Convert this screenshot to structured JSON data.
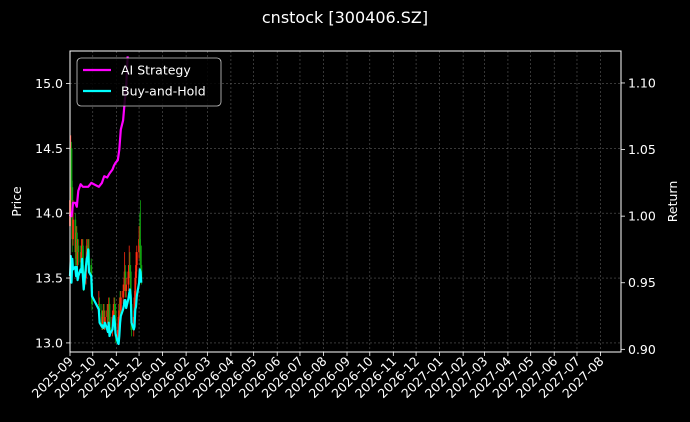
{
  "chart_data": {
    "type": "line",
    "title": "cnstock [300406.SZ]",
    "ylabel_left": "Price",
    "ylabel_right": "Return",
    "ylim_left": [
      12.93,
      15.25
    ],
    "ylim_right": [
      0.898,
      1.124
    ],
    "yticks_left": [
      "13.0",
      "13.5",
      "14.0",
      "14.5",
      "15.0"
    ],
    "yticks_right": [
      "0.90",
      "0.95",
      "1.00",
      "1.05",
      "1.10"
    ],
    "x_range": [
      "2025-09-01",
      "2027-08-28"
    ],
    "x_ticks": [
      "2025-09",
      "2025-10",
      "2025-11",
      "2025-12",
      "2026-01",
      "2026-02",
      "2026-03",
      "2026-04",
      "2026-05",
      "2026-06",
      "2026-07",
      "2026-08",
      "2026-09",
      "2026-10",
      "2026-11",
      "2026-12",
      "2027-01",
      "2027-02",
      "2027-03",
      "2027-04",
      "2027-05",
      "2027-06",
      "2027-07",
      "2027-08"
    ],
    "grid": true,
    "legend": {
      "placement": "top-left"
    },
    "colors": {
      "background": "#000000",
      "ai_strategy": "#ff00ff",
      "buy_and_hold": "#00ffff",
      "candle_up": "#ff2a10",
      "candle_down": "#10a010",
      "grid": "#5a5a5a"
    },
    "series": [
      {
        "name": "AI Strategy",
        "axis": "right",
        "x": [
          "2025-09-01",
          "2025-09-02",
          "2025-09-03",
          "2025-09-04",
          "2025-09-05",
          "2025-09-08",
          "2025-09-10",
          "2025-09-12",
          "2025-09-15",
          "2025-09-18",
          "2025-09-22",
          "2025-09-25",
          "2025-09-29",
          "2025-10-09",
          "2025-10-13",
          "2025-10-16",
          "2025-10-20",
          "2025-10-23",
          "2025-10-27",
          "2025-10-29",
          "2025-10-31",
          "2025-11-03",
          "2025-11-05",
          "2025-11-07",
          "2025-11-10",
          "2025-11-12",
          "2025-11-14",
          "2025-11-16"
        ],
        "values": [
          1.0,
          1.002,
          1.0,
          1.004,
          1.01,
          1.01,
          1.007,
          1.019,
          1.024,
          1.022,
          1.022,
          1.022,
          1.025,
          1.022,
          1.025,
          1.03,
          1.029,
          1.032,
          1.035,
          1.038,
          1.04,
          1.042,
          1.05,
          1.065,
          1.072,
          1.085,
          1.098,
          1.12
        ]
      },
      {
        "name": "Buy-and-Hold",
        "axis": "right",
        "x": [
          "2025-09-01",
          "2025-09-02",
          "2025-09-03",
          "2025-09-04",
          "2025-09-05",
          "2025-09-08",
          "2025-09-09",
          "2025-09-10",
          "2025-09-11",
          "2025-09-12",
          "2025-09-15",
          "2025-09-16",
          "2025-09-17",
          "2025-09-18",
          "2025-09-19",
          "2025-09-22",
          "2025-09-23",
          "2025-09-24",
          "2025-09-25",
          "2025-09-26",
          "2025-09-29",
          "2025-09-30",
          "2025-10-09",
          "2025-10-10",
          "2025-10-13",
          "2025-10-14",
          "2025-10-15",
          "2025-10-16",
          "2025-10-17",
          "2025-10-20",
          "2025-10-21",
          "2025-10-22",
          "2025-10-23",
          "2025-10-24",
          "2025-10-27",
          "2025-10-28",
          "2025-10-29",
          "2025-10-30",
          "2025-10-31",
          "2025-11-03",
          "2025-11-04",
          "2025-11-05",
          "2025-11-06",
          "2025-11-07",
          "2025-11-10",
          "2025-11-11",
          "2025-11-12",
          "2025-11-13",
          "2025-11-14",
          "2025-11-17",
          "2025-11-18",
          "2025-11-19",
          "2025-11-20",
          "2025-11-21",
          "2025-11-24",
          "2025-11-25",
          "2025-11-26",
          "2025-11-27",
          "2025-11-28",
          "2025-12-01",
          "2025-12-02",
          "2025-12-03",
          "2025-12-04"
        ],
        "values": [
          0.955,
          0.97,
          0.95,
          0.968,
          0.96,
          0.962,
          0.955,
          0.962,
          0.952,
          0.955,
          0.96,
          0.958,
          0.968,
          0.955,
          0.945,
          0.962,
          0.968,
          0.97,
          0.975,
          0.958,
          0.955,
          0.94,
          0.93,
          0.92,
          0.917,
          0.918,
          0.916,
          0.918,
          0.92,
          0.915,
          0.913,
          0.92,
          0.91,
          0.912,
          0.915,
          0.922,
          0.925,
          0.92,
          0.912,
          0.905,
          0.904,
          0.91,
          0.92,
          0.925,
          0.93,
          0.933,
          0.937,
          0.937,
          0.931,
          0.938,
          0.942,
          0.945,
          0.94,
          0.92,
          0.915,
          0.917,
          0.93,
          0.932,
          0.94,
          0.95,
          0.96,
          0.958,
          0.95
        ]
      }
    ],
    "candles": {
      "axis": "left",
      "x": [
        "2025-09-01",
        "2025-09-02",
        "2025-09-03",
        "2025-09-04",
        "2025-09-05",
        "2025-09-08",
        "2025-09-09",
        "2025-09-10",
        "2025-09-11",
        "2025-09-12",
        "2025-09-15",
        "2025-09-16",
        "2025-09-17",
        "2025-09-18",
        "2025-09-19",
        "2025-09-22",
        "2025-09-23",
        "2025-09-24",
        "2025-09-25",
        "2025-09-26",
        "2025-09-29",
        "2025-09-30",
        "2025-10-09",
        "2025-10-10",
        "2025-10-13",
        "2025-10-14",
        "2025-10-15",
        "2025-10-16",
        "2025-10-17",
        "2025-10-20",
        "2025-10-21",
        "2025-10-22",
        "2025-10-23",
        "2025-10-24",
        "2025-10-27",
        "2025-10-28",
        "2025-10-29",
        "2025-10-30",
        "2025-10-31",
        "2025-11-03",
        "2025-11-04",
        "2025-11-05",
        "2025-11-06",
        "2025-11-07",
        "2025-11-10",
        "2025-11-11",
        "2025-11-12",
        "2025-11-13",
        "2025-11-14",
        "2025-11-17",
        "2025-11-18",
        "2025-11-19",
        "2025-11-20",
        "2025-11-21",
        "2025-11-24",
        "2025-11-25",
        "2025-11-26",
        "2025-11-27",
        "2025-11-28",
        "2025-12-01",
        "2025-12-02",
        "2025-12-03",
        "2025-12-04"
      ],
      "open": [
        13.9,
        14.1,
        14.5,
        14.2,
        13.8,
        13.95,
        13.7,
        13.85,
        13.6,
        13.75,
        13.7,
        13.62,
        13.7,
        13.75,
        13.55,
        13.5,
        13.6,
        13.75,
        13.7,
        13.72,
        13.6,
        13.45,
        13.3,
        13.3,
        13.25,
        13.15,
        13.2,
        13.25,
        13.15,
        13.2,
        13.25,
        13.18,
        13.3,
        13.12,
        13.1,
        13.2,
        13.25,
        13.3,
        13.25,
        13.05,
        13.1,
        13.2,
        13.3,
        13.25,
        13.35,
        13.4,
        13.45,
        13.55,
        13.4,
        13.45,
        13.55,
        13.6,
        13.55,
        13.3,
        13.1,
        13.2,
        13.35,
        13.5,
        13.6,
        13.7,
        13.8,
        13.75,
        13.6
      ],
      "close": [
        14.1,
        14.5,
        14.2,
        13.8,
        13.95,
        13.7,
        13.85,
        13.6,
        13.75,
        13.7,
        13.62,
        13.7,
        13.75,
        13.55,
        13.5,
        13.6,
        13.75,
        13.7,
        13.72,
        13.6,
        13.45,
        13.3,
        13.3,
        13.25,
        13.15,
        13.2,
        13.25,
        13.15,
        13.2,
        13.25,
        13.18,
        13.3,
        13.12,
        13.1,
        13.2,
        13.25,
        13.3,
        13.25,
        13.05,
        13.1,
        13.2,
        13.3,
        13.25,
        13.35,
        13.4,
        13.45,
        13.55,
        13.4,
        13.45,
        13.55,
        13.6,
        13.55,
        13.3,
        13.1,
        13.2,
        13.35,
        13.5,
        13.6,
        13.7,
        13.8,
        13.75,
        13.6,
        13.5
      ],
      "high": [
        14.3,
        14.6,
        14.55,
        14.25,
        14.1,
        14.0,
        13.9,
        13.9,
        13.8,
        13.8,
        13.75,
        13.8,
        13.8,
        13.8,
        13.6,
        13.65,
        13.8,
        13.8,
        13.8,
        13.8,
        13.65,
        13.5,
        13.4,
        13.35,
        13.3,
        13.25,
        13.3,
        13.3,
        13.25,
        13.3,
        13.3,
        13.35,
        13.35,
        13.2,
        13.25,
        13.3,
        13.35,
        13.35,
        13.3,
        13.15,
        13.25,
        13.35,
        13.4,
        13.4,
        13.45,
        13.5,
        13.7,
        13.6,
        13.5,
        13.6,
        13.75,
        13.7,
        13.6,
        13.35,
        13.25,
        13.4,
        13.55,
        13.7,
        13.75,
        13.9,
        14.0,
        14.1,
        13.75
      ],
      "low": [
        13.8,
        14.0,
        14.1,
        13.7,
        13.75,
        13.6,
        13.65,
        13.55,
        13.55,
        13.6,
        13.55,
        13.55,
        13.65,
        13.5,
        13.4,
        13.45,
        13.55,
        13.6,
        13.65,
        13.55,
        13.4,
        13.25,
        13.2,
        13.2,
        13.1,
        13.1,
        13.15,
        13.1,
        13.1,
        13.15,
        13.15,
        13.15,
        13.05,
        13.05,
        13.05,
        13.15,
        13.2,
        13.2,
        13.0,
        13.0,
        13.05,
        13.15,
        13.2,
        13.2,
        13.3,
        13.35,
        13.4,
        13.35,
        13.35,
        13.4,
        13.5,
        13.5,
        13.25,
        13.05,
        13.05,
        13.15,
        13.3,
        13.45,
        13.55,
        13.65,
        13.7,
        13.55,
        13.45
      ]
    }
  }
}
